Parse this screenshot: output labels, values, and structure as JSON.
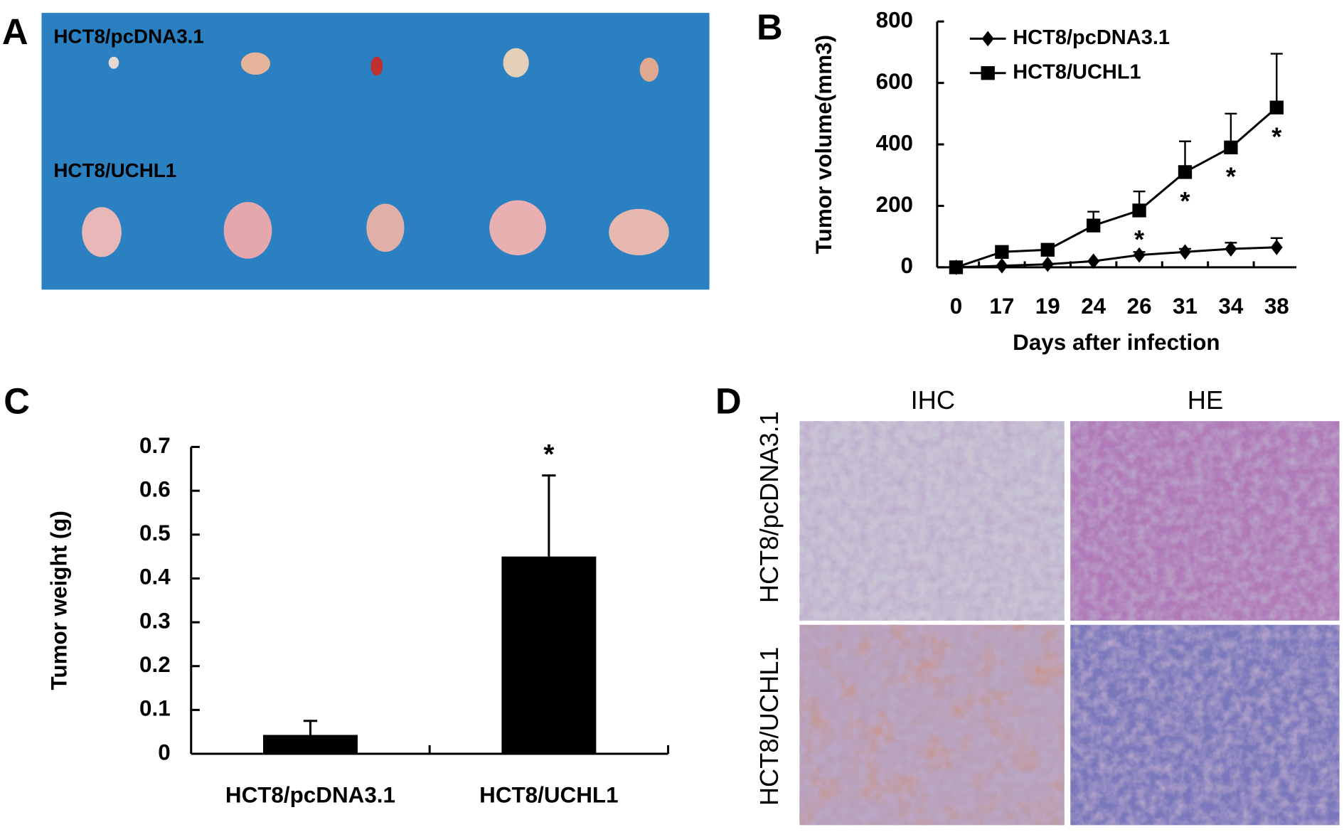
{
  "panel_letters": [
    "A",
    "B",
    "C",
    "D"
  ],
  "panel_a": {
    "labels": [
      "HCT8/pcDNA3.1",
      "HCT8/UCHL1"
    ]
  },
  "chart_data": [
    {
      "type": "line",
      "categories": [
        "0",
        "17",
        "19",
        "24",
        "26",
        "31",
        "34",
        "38"
      ],
      "series": [
        {
          "name": "HCT8/pcDNA3.1",
          "color": "#000000",
          "marker": "diamond",
          "values": [
            0,
            5,
            10,
            20,
            40,
            50,
            60,
            65
          ],
          "errors": [
            0,
            0,
            0,
            0,
            10,
            10,
            20,
            30
          ]
        },
        {
          "name": "HCT8/UCHL1",
          "color": "#000000",
          "marker": "square",
          "values": [
            0,
            50,
            57,
            136,
            185,
            310,
            390,
            520
          ],
          "errors": [
            0,
            0,
            0,
            45,
            62,
            100,
            110,
            175
          ]
        }
      ],
      "x_label": "Days after infection",
      "y_label": "Tumor volume(mm3)",
      "ylim": [
        0,
        800
      ],
      "yticks": [
        0,
        200,
        400,
        600,
        800
      ],
      "legend": "upper left",
      "annotations": [
        {
          "x": "26",
          "text": "*"
        },
        {
          "x": "31",
          "text": "*"
        },
        {
          "x": "34",
          "text": "*"
        },
        {
          "x": "38",
          "text": "*"
        }
      ]
    },
    {
      "type": "bar",
      "categories": [
        "HCT8/pcDNA3.1",
        "HCT8/UCHL1"
      ],
      "values": [
        0.043,
        0.45
      ],
      "errors": [
        0.032,
        0.185
      ],
      "color": "#000000",
      "y_label": "Tumor weight (g)",
      "ylim": [
        0,
        0.7
      ],
      "yticks": [
        0,
        0.1,
        0.2,
        0.3,
        0.4,
        0.5,
        0.6,
        0.7
      ],
      "annotations": [
        {
          "x": "HCT8/UCHL1",
          "text": "*"
        }
      ]
    }
  ],
  "panel_d": {
    "columns": [
      "IHC",
      "HE"
    ],
    "rows": [
      "HCT8/pcDNA3.1",
      "HCT8/UCHL1"
    ]
  }
}
